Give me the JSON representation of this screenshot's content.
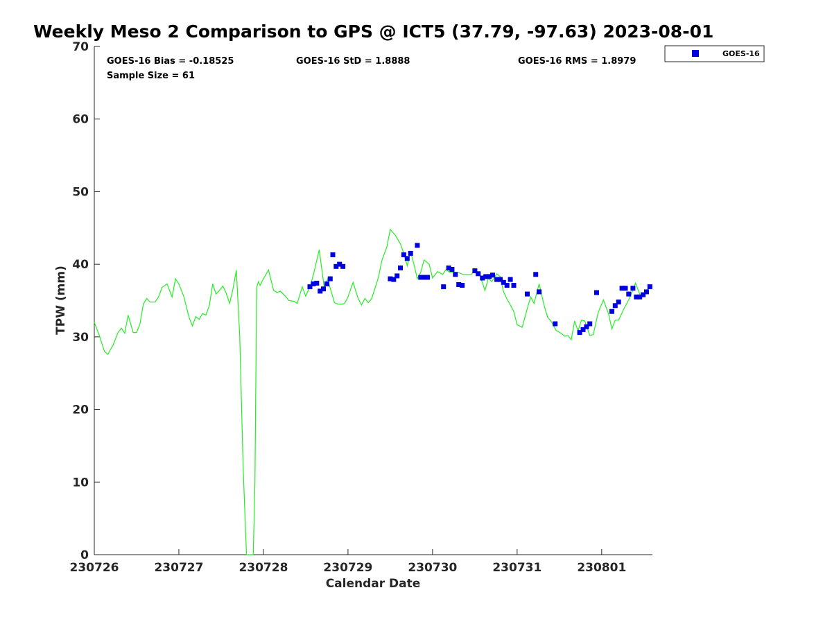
{
  "chart_data": {
    "type": "scatter",
    "title": "Weekly Meso 2 Comparison to GPS @ ICT5 (37.79, -97.63) 2023-08-01",
    "xlabel": "Calendar Date",
    "ylabel": "TPW (mm)",
    "xlim": [
      0,
      6.6
    ],
    "ylim": [
      0,
      70
    ],
    "x_ticks": [
      0,
      1,
      2,
      3,
      4,
      5,
      6
    ],
    "x_tick_labels": [
      "230726",
      "230727",
      "230728",
      "230729",
      "230730",
      "230731",
      "230801"
    ],
    "y_ticks": [
      0,
      10,
      20,
      30,
      40,
      50,
      60,
      70
    ],
    "grid": false,
    "legend_position": "top-right, outside plot",
    "stats": {
      "bias": "GOES-16 Bias = -0.18525",
      "std": "GOES-16 StD = 1.8888",
      "rms": "GOES-16 RMS = 1.8979",
      "sample": "Sample Size = 61"
    },
    "series": [
      {
        "name": "GOES-16",
        "kind": "scatter",
        "color": "#0000dd",
        "x": [
          2.55,
          2.59,
          2.63,
          2.67,
          2.71,
          2.75,
          2.79,
          2.82,
          2.86,
          2.9,
          2.94,
          3.5,
          3.54,
          3.58,
          3.62,
          3.66,
          3.7,
          3.74,
          3.82,
          3.86,
          3.9,
          3.94,
          4.13,
          4.19,
          4.23,
          4.27,
          4.31,
          4.35,
          4.5,
          4.54,
          4.59,
          4.63,
          4.67,
          4.71,
          4.76,
          4.8,
          4.84,
          4.88,
          4.92,
          4.96,
          5.12,
          5.22,
          5.26,
          5.45,
          5.74,
          5.78,
          5.82,
          5.86,
          5.94,
          6.12,
          6.16,
          6.2,
          6.24,
          6.28,
          6.32,
          6.37,
          6.41,
          6.45,
          6.49,
          6.53,
          6.57
        ],
        "y": [
          36.9,
          37.3,
          37.4,
          36.3,
          36.6,
          37.3,
          38.0,
          41.3,
          39.7,
          40.0,
          39.7,
          38.0,
          37.9,
          38.4,
          39.5,
          41.3,
          40.8,
          41.5,
          42.6,
          38.2,
          38.2,
          38.2,
          36.9,
          39.5,
          39.3,
          38.6,
          37.2,
          37.1,
          39.1,
          38.7,
          38.1,
          38.3,
          38.3,
          38.5,
          37.9,
          37.9,
          37.5,
          37.1,
          37.9,
          37.1,
          35.9,
          38.6,
          36.2,
          31.8,
          30.6,
          31.0,
          31.4,
          31.8,
          36.1,
          33.5,
          34.3,
          34.8,
          36.7,
          36.7,
          35.9,
          36.7,
          35.5,
          35.5,
          35.8,
          36.2,
          36.9
        ]
      },
      {
        "name": "",
        "kind": "line",
        "color": "#22ee22",
        "x": [
          0,
          0.06,
          0.12,
          0.16,
          0.22,
          0.28,
          0.32,
          0.36,
          0.4,
          0.46,
          0.5,
          0.54,
          0.58,
          0.62,
          0.66,
          0.72,
          0.76,
          0.8,
          0.86,
          0.92,
          0.96,
          1.0,
          1.06,
          1.12,
          1.16,
          1.2,
          1.24,
          1.28,
          1.32,
          1.36,
          1.4,
          1.44,
          1.48,
          1.52,
          1.56,
          1.6,
          1.64,
          1.68,
          1.72,
          1.76,
          1.8,
          1.84,
          1.86,
          1.88,
          1.9,
          1.92,
          1.94,
          1.96,
          2.0,
          2.06,
          2.12,
          2.16,
          2.2,
          2.26,
          2.3,
          2.36,
          2.4,
          2.46,
          2.5,
          2.56,
          2.6,
          2.66,
          2.72,
          2.76,
          2.8,
          2.84,
          2.88,
          2.92,
          2.96,
          3.0,
          3.06,
          3.12,
          3.16,
          3.2,
          3.24,
          3.28,
          3.32,
          3.36,
          3.4,
          3.46,
          3.5,
          3.56,
          3.62,
          3.66,
          3.7,
          3.74,
          3.78,
          3.82,
          3.86,
          3.9,
          3.96,
          4.0,
          4.06,
          4.12,
          4.16,
          4.2,
          4.24,
          4.28,
          4.32,
          4.36,
          4.4,
          4.46,
          4.5,
          4.56,
          4.62,
          4.66,
          4.7,
          4.76,
          4.8,
          4.84,
          4.88,
          4.92,
          4.96,
          5.0,
          5.06,
          5.12,
          5.16,
          5.2,
          5.26,
          5.32,
          5.36,
          5.4,
          5.46,
          5.52,
          5.56,
          5.6,
          5.64,
          5.68,
          5.72,
          5.76,
          5.8,
          5.86,
          5.9,
          5.96,
          6.02,
          6.08,
          6.12,
          6.16,
          6.2,
          6.26,
          6.32,
          6.36,
          6.4,
          6.46,
          6.52,
          6.56,
          6.6
        ],
        "y": [
          32.0,
          30.2,
          28.0,
          27.6,
          28.8,
          30.6,
          31.2,
          30.5,
          33.0,
          30.6,
          30.6,
          31.8,
          34.5,
          35.3,
          34.8,
          34.8,
          35.5,
          36.8,
          37.3,
          35.5,
          38.0,
          37.3,
          35.5,
          32.7,
          31.5,
          32.8,
          32.4,
          33.2,
          33.0,
          34.3,
          37.3,
          35.9,
          36.4,
          37.0,
          36.0,
          34.6,
          36.6,
          39.2,
          30.0,
          12.0,
          0.0,
          0.0,
          0.0,
          0.0,
          10.0,
          36.8,
          37.6,
          37.1,
          38.0,
          39.2,
          36.4,
          36.1,
          36.3,
          35.6,
          35.0,
          34.9,
          34.6,
          36.9,
          35.6,
          37.2,
          39.0,
          42.0,
          36.7,
          38.0,
          36.3,
          34.7,
          34.5,
          34.5,
          34.6,
          35.5,
          37.5,
          35.3,
          34.4,
          35.3,
          34.7,
          35.3,
          36.7,
          38.2,
          40.5,
          42.4,
          44.8,
          44.0,
          42.8,
          41.5,
          39.8,
          41.7,
          40.0,
          38.0,
          38.9,
          40.6,
          40.0,
          38.1,
          39.0,
          38.6,
          39.3,
          38.9,
          38.9,
          38.9,
          38.8,
          38.6,
          38.6,
          38.6,
          39.4,
          38.5,
          36.4,
          38.1,
          37.6,
          38.7,
          38.3,
          36.2,
          35.2,
          34.4,
          33.5,
          31.7,
          31.3,
          33.9,
          35.5,
          34.6,
          37.3,
          34.3,
          32.7,
          32.2,
          30.9,
          30.5,
          30.1,
          30.2,
          29.6,
          32.2,
          30.8,
          32.3,
          32.2,
          30.2,
          30.3,
          33.4,
          35.1,
          33.2,
          31.1,
          32.3,
          32.3,
          33.8,
          35.1,
          36.2,
          37.4,
          35.6,
          36.0,
          36.9,
          36.9
        ]
      }
    ]
  }
}
